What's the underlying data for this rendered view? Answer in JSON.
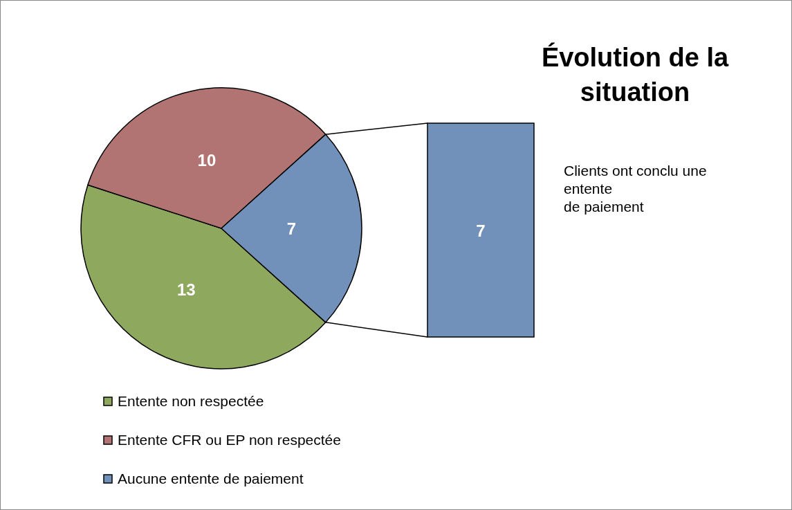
{
  "chart_data": {
    "type": "pie",
    "title": "Évolution de la situation",
    "categories": [
      "Entente non respectée",
      "Entente CFR ou EP non respectée",
      "Aucune entente de paiement"
    ],
    "values": [
      13,
      10,
      7
    ],
    "colors": [
      "#8ea85e",
      "#b27472",
      "#7191ba"
    ],
    "data_labels": true,
    "legend": "bottom left",
    "annotations": [
      {
        "text": "7",
        "x": "Aucune entente de paiement"
      },
      "Clients ont conclu une entente\nde paiement"
    ]
  }
}
